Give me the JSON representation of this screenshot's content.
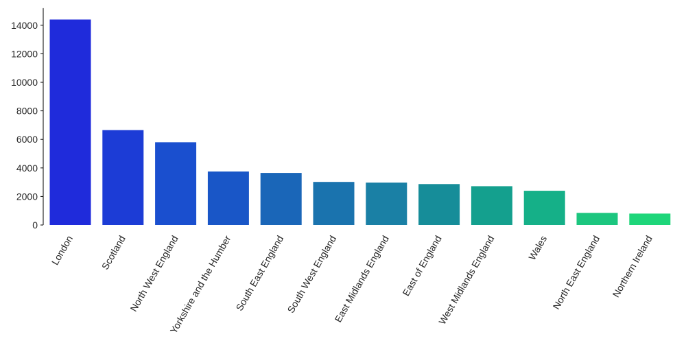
{
  "chart_data": {
    "type": "bar",
    "title": "",
    "xlabel": "",
    "ylabel": "",
    "categories": [
      "London",
      "Scotland",
      "North West England",
      "Yorkshire and the Humber",
      "South East England",
      "South West England",
      "East Midlands England",
      "East of England",
      "West Midlands England",
      "Wales",
      "North East England",
      "Northern Ireland"
    ],
    "values": [
      14400,
      6650,
      5800,
      3750,
      3650,
      3020,
      2970,
      2870,
      2720,
      2400,
      850,
      800
    ],
    "colors": [
      "#1f2bdb",
      "#1c3cd6",
      "#1a4fcf",
      "#1956c7",
      "#1a66b8",
      "#1a73ae",
      "#1a80a5",
      "#168d99",
      "#14a08e",
      "#15b088",
      "#1cc67f",
      "#1ed67a"
    ],
    "ylim": [
      0,
      15200
    ],
    "yticks": [
      0,
      2000,
      4000,
      6000,
      8000,
      10000,
      12000,
      14000
    ],
    "ytick_labels": [
      "0",
      "2000",
      "4000",
      "6000",
      "8000",
      "10000",
      "12000",
      "14000"
    ],
    "grid": false,
    "legend": "none"
  }
}
